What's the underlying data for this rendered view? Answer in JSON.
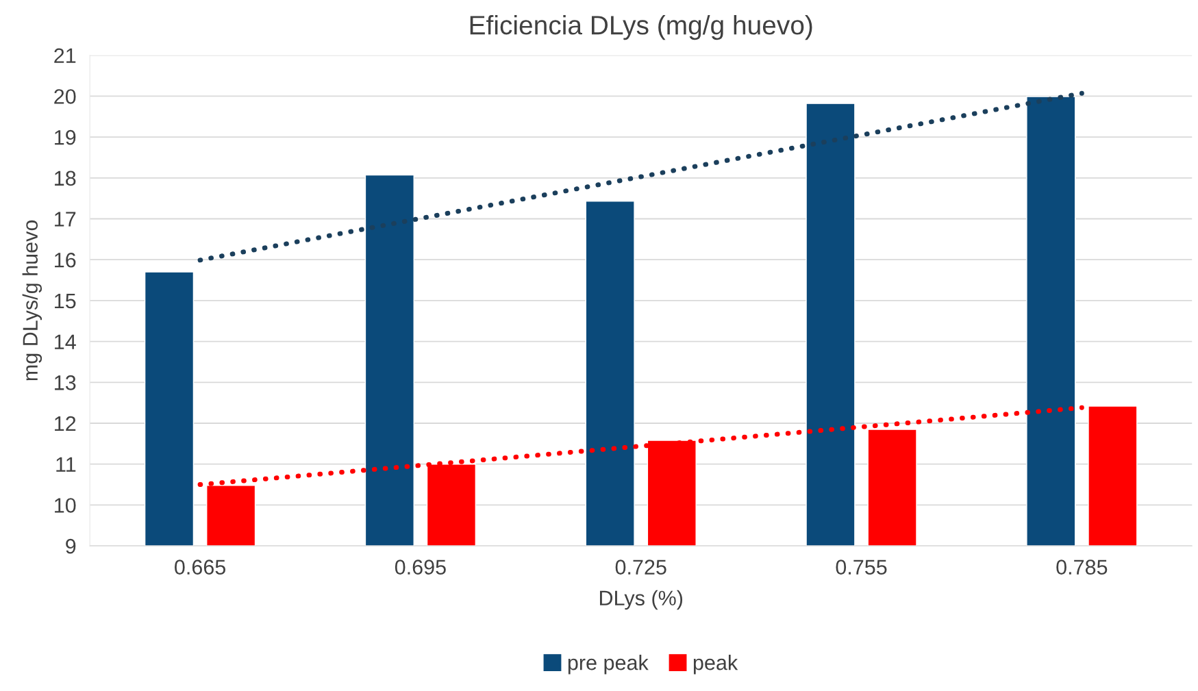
{
  "chart_data": {
    "type": "bar",
    "title": "Eficiencia DLys (mg/g huevo)",
    "xlabel": "DLys (%)",
    "ylabel": "mg DLys/g huevo",
    "categories": [
      "0.665",
      "0.695",
      "0.725",
      "0.755",
      "0.785"
    ],
    "series": [
      {
        "name": "pre peak",
        "color": "#0b4a7a",
        "values": [
          15.7,
          18.07,
          17.43,
          19.82,
          19.99
        ]
      },
      {
        "name": "peak",
        "color": "#ff0000",
        "values": [
          10.48,
          11.0,
          11.58,
          11.85,
          12.42
        ]
      },
      {
        "type": "line",
        "x": [
          "0.665",
          "0.785"
        ],
        "values": [
          15.99,
          20.07
        ],
        "color": "#1b3f5c",
        "line_style": "dotted"
      },
      {
        "type": "line",
        "x": [
          "0.665",
          "0.785"
        ],
        "values": [
          10.5,
          12.38
        ],
        "color": "#ff0000",
        "line_style": "dotted"
      }
    ],
    "ylim": [
      9,
      21
    ],
    "yticks": [
      9,
      10,
      11,
      12,
      13,
      14,
      15,
      16,
      17,
      18,
      19,
      20,
      21
    ],
    "grid": "y",
    "legend": "bottom"
  }
}
